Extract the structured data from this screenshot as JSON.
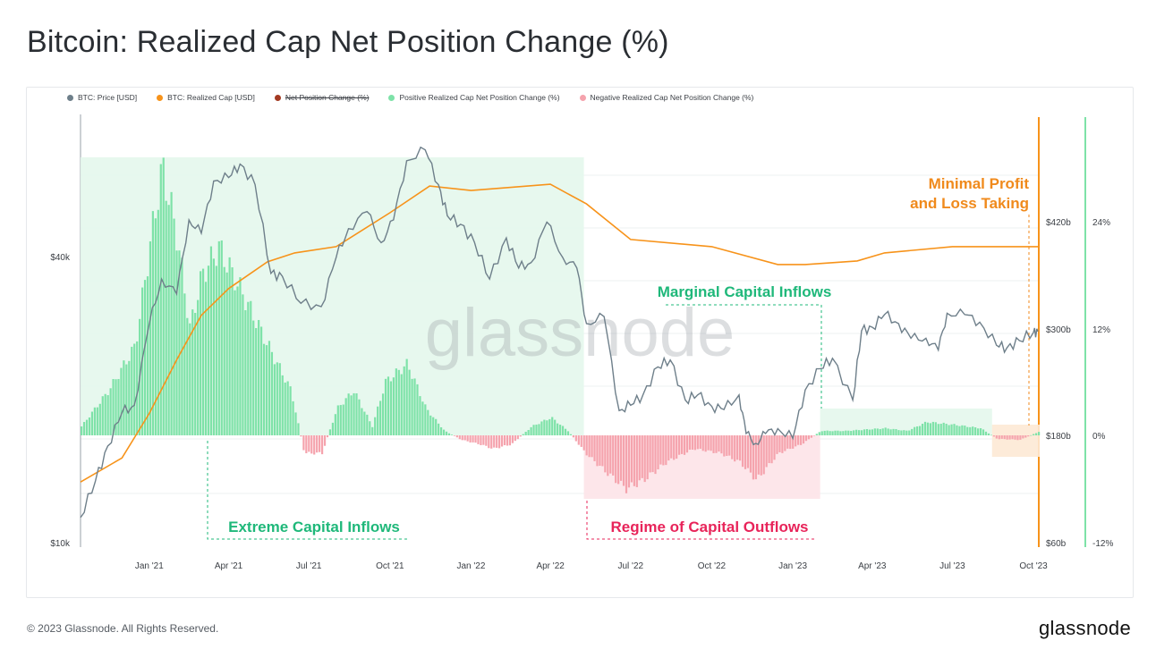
{
  "page": {
    "title": "Bitcoin: Realized Cap Net Position Change (%)",
    "footer": "© 2023 Glassnode. All Rights Reserved.",
    "brand": "glassnode"
  },
  "legend": [
    {
      "label": "BTC: Price [USD]",
      "color": "#6e7f8a",
      "struck": false
    },
    {
      "label": "BTC: Realized Cap [USD]",
      "color": "#f7931a",
      "struck": false
    },
    {
      "label": "Net Position Change (%)",
      "color": "#a33a22",
      "struck": true
    },
    {
      "label": "Positive Realized Cap Net Position Change (%)",
      "color": "#7ee2a8",
      "struck": false
    },
    {
      "label": "Negative Realized Cap Net Position Change (%)",
      "color": "#f5a3ad",
      "struck": false
    }
  ],
  "chart_data": {
    "type": "line",
    "watermark": "glassnode",
    "x_ticks": [
      "Jan '21",
      "Apr '21",
      "Jul '21",
      "Oct '21",
      "Jan '22",
      "Apr '22",
      "Jul '22",
      "Oct '22",
      "Jan '23",
      "Apr '23",
      "Jul '23",
      "Oct '23"
    ],
    "left_axis": {
      "label": "",
      "scale": "log",
      "ticks": [
        "$40k",
        "$10k"
      ]
    },
    "mid_axis": {
      "label": "",
      "ticks": [
        "$420b",
        "$300b",
        "$180b",
        "$60b"
      ],
      "color": "#f7931a"
    },
    "right_axis": {
      "label": "",
      "ticks": [
        "24%",
        "12%",
        "0%",
        "-12%"
      ],
      "color": "#7ee2a8"
    },
    "series": [
      {
        "name": "BTC: Price [USD]",
        "color": "#6e7f8a",
        "dates": [
          "2020-10-15",
          "2020-11-01",
          "2020-11-15",
          "2020-12-01",
          "2020-12-15",
          "2021-01-01",
          "2021-01-15",
          "2021-02-01",
          "2021-02-15",
          "2021-03-01",
          "2021-03-15",
          "2021-04-01",
          "2021-04-14",
          "2021-05-01",
          "2021-05-19",
          "2021-06-01",
          "2021-06-22",
          "2021-07-15",
          "2021-08-01",
          "2021-08-15",
          "2021-09-05",
          "2021-09-21",
          "2021-10-05",
          "2021-10-20",
          "2021-11-10",
          "2021-11-25",
          "2021-12-05",
          "2021-12-20",
          "2022-01-05",
          "2022-01-22",
          "2022-02-10",
          "2022-02-24",
          "2022-03-10",
          "2022-03-28",
          "2022-04-15",
          "2022-05-01",
          "2022-05-12",
          "2022-06-01",
          "2022-06-18",
          "2022-07-01",
          "2022-07-15",
          "2022-08-01",
          "2022-08-15",
          "2022-09-01",
          "2022-09-15",
          "2022-10-01",
          "2022-10-15",
          "2022-11-01",
          "2022-11-09",
          "2022-11-20",
          "2022-12-01",
          "2022-12-15",
          "2023-01-01",
          "2023-01-15",
          "2023-02-01",
          "2023-02-15",
          "2023-03-10",
          "2023-03-20",
          "2023-04-01",
          "2023-04-15",
          "2023-05-01",
          "2023-05-15",
          "2023-06-01",
          "2023-06-15",
          "2023-06-25",
          "2023-07-15",
          "2023-08-01",
          "2023-08-20",
          "2023-09-01",
          "2023-09-15",
          "2023-10-01",
          "2023-10-06"
        ],
        "values": [
          11300,
          13500,
          16000,
          18800,
          19500,
          29000,
          36000,
          33500,
          48000,
          45000,
          58000,
          59000,
          63000,
          57000,
          37000,
          36500,
          32000,
          31500,
          40000,
          46000,
          50000,
          43000,
          48000,
          64000,
          67500,
          57000,
          49000,
          47000,
          43000,
          36000,
          44000,
          38000,
          39000,
          47500,
          40000,
          38000,
          29000,
          30000,
          19000,
          19500,
          20500,
          23500,
          24300,
          20000,
          20500,
          19400,
          19100,
          20500,
          17000,
          16200,
          17000,
          17400,
          16600,
          21000,
          23300,
          24500,
          20000,
          28000,
          28500,
          30300,
          29000,
          27000,
          27000,
          25500,
          30500,
          30300,
          29200,
          26100,
          25800,
          26700,
          27800,
          27900
        ]
      },
      {
        "name": "BTC: Realized Cap [USD]",
        "color": "#f7931a",
        "dates": [
          "2020-10-15",
          "2020-12-01",
          "2021-01-01",
          "2021-02-01",
          "2021-03-01",
          "2021-04-01",
          "2021-05-15",
          "2021-06-15",
          "2021-08-01",
          "2021-10-01",
          "2021-11-15",
          "2022-01-01",
          "2022-04-01",
          "2022-05-12",
          "2022-07-01",
          "2022-10-01",
          "2022-12-15",
          "2023-01-15",
          "2023-03-15",
          "2023-04-15",
          "2023-07-01",
          "2023-10-06"
        ],
        "values": [
          128,
          155,
          205,
          265,
          315,
          345,
          375,
          385,
          392,
          430,
          460,
          455,
          462,
          440,
          400,
          392,
          372,
          372,
          376,
          385,
          392,
          392
        ]
      },
      {
        "name": "Net Position Change (%)",
        "color": "#7ee2a8",
        "negative_color": "#f5a3ad",
        "dates": [
          "2020-10-15",
          "2020-11-15",
          "2020-12-15",
          "2021-01-05",
          "2021-01-15",
          "2021-02-01",
          "2021-02-15",
          "2021-03-01",
          "2021-03-20",
          "2021-04-15",
          "2021-05-15",
          "2021-06-10",
          "2021-06-25",
          "2021-07-15",
          "2021-08-01",
          "2021-08-20",
          "2021-09-10",
          "2021-09-25",
          "2021-10-20",
          "2021-11-10",
          "2021-12-01",
          "2021-12-20",
          "2022-01-10",
          "2022-01-25",
          "2022-02-15",
          "2022-03-10",
          "2022-04-01",
          "2022-04-20",
          "2022-05-10",
          "2022-06-01",
          "2022-06-25",
          "2022-07-15",
          "2022-08-10",
          "2022-09-10",
          "2022-10-10",
          "2022-11-01",
          "2022-11-20",
          "2022-12-15",
          "2023-01-10",
          "2023-02-01",
          "2023-03-01",
          "2023-04-15",
          "2023-05-10",
          "2023-06-01",
          "2023-07-01",
          "2023-08-01",
          "2023-08-20",
          "2023-09-15",
          "2023-10-06"
        ],
        "values": [
          1,
          5,
          10,
          24,
          30,
          22,
          12,
          18,
          21,
          16,
          10,
          5,
          -2,
          -2,
          3,
          5,
          1,
          6,
          8,
          3,
          0.5,
          -0.5,
          -1,
          -1.5,
          -1,
          1,
          2,
          0.5,
          -2,
          -4,
          -6,
          -5,
          -3,
          -1.5,
          -2,
          -3,
          -5,
          -2,
          -1,
          0.5,
          0.5,
          0.8,
          0.5,
          1.5,
          1.2,
          0.8,
          -0.4,
          -0.5,
          0.4
        ]
      }
    ],
    "annotations": [
      {
        "label": "Extreme Capital Inflows",
        "color": "#1fb87a",
        "start": "2020-10-15",
        "end": "2022-05-09",
        "tone": "positive"
      },
      {
        "label": "Regime of Capital Outflows",
        "color": "#e8245a",
        "start": "2022-05-09",
        "end": "2023-02-01",
        "tone": "negative"
      },
      {
        "label": "Marginal Capital Inflows",
        "color": "#1fb87a",
        "start": "2023-02-01",
        "end": "2023-08-15",
        "tone": "positive"
      },
      {
        "label": "Minimal Profit\nand Loss Taking",
        "color": "#f08a1c",
        "start": "2023-08-15",
        "end": "2023-10-06",
        "tone": "neutral"
      }
    ]
  }
}
